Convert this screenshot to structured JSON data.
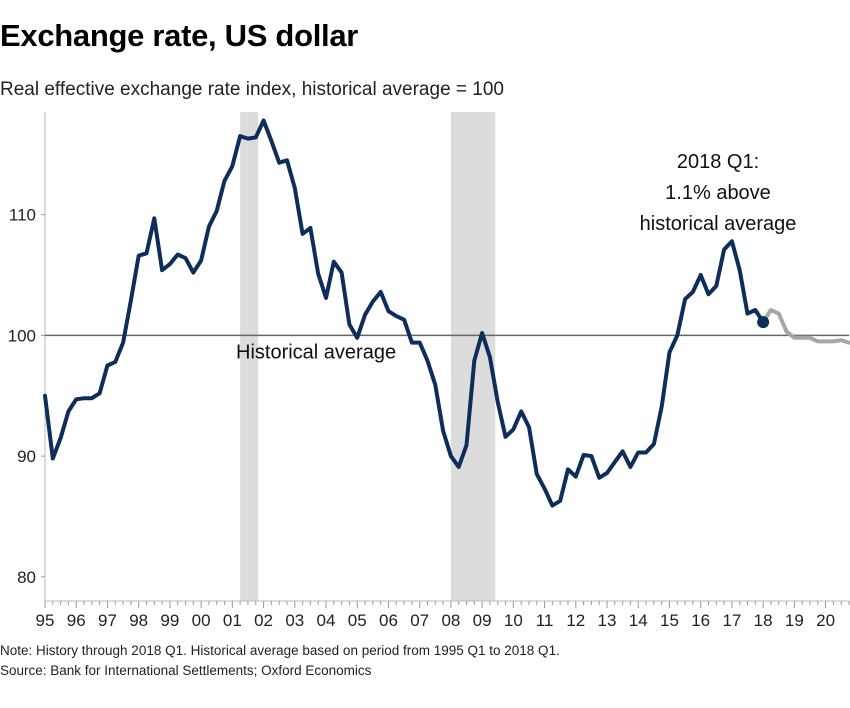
{
  "title": "Exchange rate, US dollar",
  "subtitle": "Real effective exchange rate index, historical average = 100",
  "notes": {
    "note": "Note: History through 2018 Q1. Historical average based on period from 1995 Q1 to 2018 Q1.",
    "source": "Source: Bank for International Settlements; Oxford Economics"
  },
  "chart_data": {
    "type": "line",
    "title": "Exchange rate, US dollar",
    "subtitle": "Real effective exchange rate index, historical average = 100",
    "xlim": [
      1995,
      2020.75
    ],
    "ylim": [
      78,
      118.5
    ],
    "yticks": [
      80,
      90,
      100,
      110
    ],
    "xtick_labels": [
      "95",
      "96",
      "97",
      "98",
      "99",
      "00",
      "01",
      "02",
      "03",
      "04",
      "05",
      "06",
      "07",
      "08",
      "09",
      "10",
      "11",
      "12",
      "13",
      "14",
      "15",
      "16",
      "17",
      "18",
      "19",
      "20"
    ],
    "grid": false,
    "reference_line": {
      "value": 100,
      "label": "Historical average"
    },
    "shaded_periods": [
      [
        2001.25,
        2001.83
      ],
      [
        2008.0,
        2009.42
      ]
    ],
    "colors": {
      "history": "#0e2d5a",
      "forecast": "#a6a6a6",
      "shading": "#dcdcdc",
      "reference": "#666666"
    },
    "annotation": {
      "lines": [
        "2018 Q1:",
        "1.1% above",
        "historical average"
      ],
      "point": [
        2018.0,
        101.1
      ]
    },
    "series": [
      {
        "kind": "history",
        "x": [
          1995.0,
          1995.25,
          1995.5,
          1995.75,
          1996.0,
          1996.25,
          1996.5,
          1996.75,
          1997.0,
          1997.25,
          1997.5,
          1997.75,
          1998.0,
          1998.25,
          1998.5,
          1998.75,
          1999.0,
          1999.25,
          1999.5,
          1999.75,
          2000.0,
          2000.25,
          2000.5,
          2000.75,
          2001.0,
          2001.25,
          2001.5,
          2001.75,
          2002.0,
          2002.25,
          2002.5,
          2002.75,
          2003.0,
          2003.25,
          2003.5,
          2003.75,
          2004.0,
          2004.25,
          2004.5,
          2004.75,
          2005.0,
          2005.25,
          2005.5,
          2005.75,
          2006.0,
          2006.25,
          2006.5,
          2006.75,
          2007.0,
          2007.25,
          2007.5,
          2007.75,
          2008.0,
          2008.25,
          2008.5,
          2008.75,
          2009.0,
          2009.25,
          2009.5,
          2009.75,
          2010.0,
          2010.25,
          2010.5,
          2010.75,
          2011.0,
          2011.25,
          2011.5,
          2011.75,
          2012.0,
          2012.25,
          2012.5,
          2012.75,
          2013.0,
          2013.25,
          2013.5,
          2013.75,
          2014.0,
          2014.25,
          2014.5,
          2014.75,
          2015.0,
          2015.25,
          2015.5,
          2015.75,
          2016.0,
          2016.25,
          2016.5,
          2016.75,
          2017.0,
          2017.25,
          2017.5,
          2017.75,
          2018.0
        ],
        "y": [
          95.0,
          89.8,
          91.5,
          93.7,
          94.7,
          94.8,
          94.8,
          95.2,
          97.5,
          97.8,
          99.4,
          102.9,
          106.6,
          106.8,
          109.7,
          105.4,
          105.9,
          106.7,
          106.4,
          105.2,
          106.2,
          109.0,
          110.3,
          112.8,
          114.0,
          116.5,
          116.3,
          116.4,
          117.8,
          116.1,
          114.3,
          114.5,
          112.2,
          108.4,
          108.9,
          105.1,
          103.1,
          106.1,
          105.2,
          100.9,
          99.8,
          101.7,
          102.8,
          103.6,
          102.0,
          101.6,
          101.3,
          99.4,
          99.4,
          97.9,
          95.9,
          92.1,
          90.0,
          89.1,
          90.9,
          97.9,
          100.2,
          98.2,
          94.5,
          91.6,
          92.2,
          93.7,
          92.4,
          88.5,
          87.3,
          85.9,
          86.3,
          88.9,
          88.3,
          90.1,
          90.0,
          88.2,
          88.6,
          89.5,
          90.4,
          89.1,
          90.3,
          90.3,
          91.0,
          94.1,
          98.6,
          100.0,
          103.0,
          103.6,
          105.0,
          103.4,
          104.1,
          107.1,
          107.8,
          105.4,
          101.8,
          102.1,
          101.1
        ]
      },
      {
        "kind": "forecast",
        "x": [
          2018.0,
          2018.25,
          2018.5,
          2018.75,
          2019.0,
          2019.25,
          2019.5,
          2019.75,
          2020.0,
          2020.25,
          2020.5,
          2020.75
        ],
        "y": [
          101.1,
          102.1,
          101.8,
          100.3,
          99.8,
          99.8,
          99.8,
          99.5,
          99.5,
          99.5,
          99.6,
          99.4
        ]
      }
    ]
  }
}
